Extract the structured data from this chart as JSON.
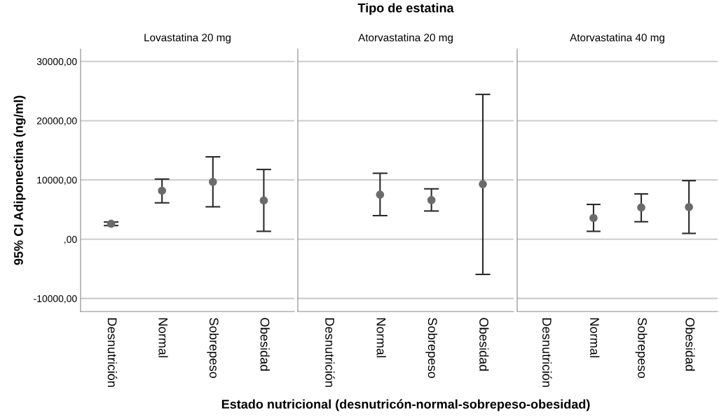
{
  "chart_data": [
    {
      "type": "scatter",
      "title": "Lovastatina 20 mg",
      "ylabel": "95% CI Adiponectina (ng/ml)",
      "categories": [
        "Desnutrición",
        "Normal",
        "Sobrepeso",
        "Obesidad"
      ],
      "series": [
        {
          "color": "#6b6b6b",
          "values": [
            2600,
            8180,
            9680,
            6530
          ],
          "errors": [
            [
              2300,
              2900
            ],
            [
              6140,
              10150
            ],
            [
              5470,
              13900
            ],
            [
              1330,
              11770
            ]
          ]
        }
      ],
      "ylim": [
        -12200,
        32100
      ],
      "yticks": [
        {
          "value": -10000,
          "label": "-10000,00"
        },
        {
          "value": 0,
          "label": ",00"
        },
        {
          "value": 10000,
          "label": "10000,00"
        },
        {
          "value": 20000,
          "label": "20000,00"
        },
        {
          "value": 30000,
          "label": "30000,00"
        }
      ],
      "grid": "y",
      "marker": "circle"
    },
    {
      "type": "scatter",
      "title": "Atorvastatina 20 mg",
      "xlabel": "Estado nutricional (desnutricón-normal-sobrepeso-obesidad)",
      "annotations": [
        "Tipo de estatina"
      ],
      "categories": [
        "Desnutrición",
        "Normal",
        "Sobrepeso",
        "Obesidad"
      ],
      "series": [
        {
          "color": "#6b6b6b",
          "values": [
            null,
            7520,
            6610,
            9290
          ],
          "errors": [
            null,
            [
              3980,
              11130
            ],
            [
              4760,
              8500
            ],
            [
              -5940,
              24440
            ]
          ]
        }
      ],
      "ylim": [
        -12200,
        32100
      ],
      "yticks": [
        -10000,
        0,
        10000,
        20000,
        30000
      ],
      "tick_labels": "x",
      "grid": "y",
      "marker": "circle"
    },
    {
      "type": "scatter",
      "title": "Atorvastatina 40 mg",
      "categories": [
        "Desnutrición",
        "Normal",
        "Sobrepeso",
        "Obesidad"
      ],
      "series": [
        {
          "color": "#6b6b6b",
          "values": [
            null,
            3580,
            5350,
            5430
          ],
          "errors": [
            null,
            [
              1330,
              5870
            ],
            [
              2950,
              7640
            ],
            [
              980,
              9880
            ]
          ]
        }
      ],
      "ylim": [
        -12200,
        32100
      ],
      "yticks": [
        -10000,
        0,
        10000,
        20000,
        30000
      ],
      "tick_labels": "x",
      "grid": "y",
      "marker": "circle"
    }
  ]
}
